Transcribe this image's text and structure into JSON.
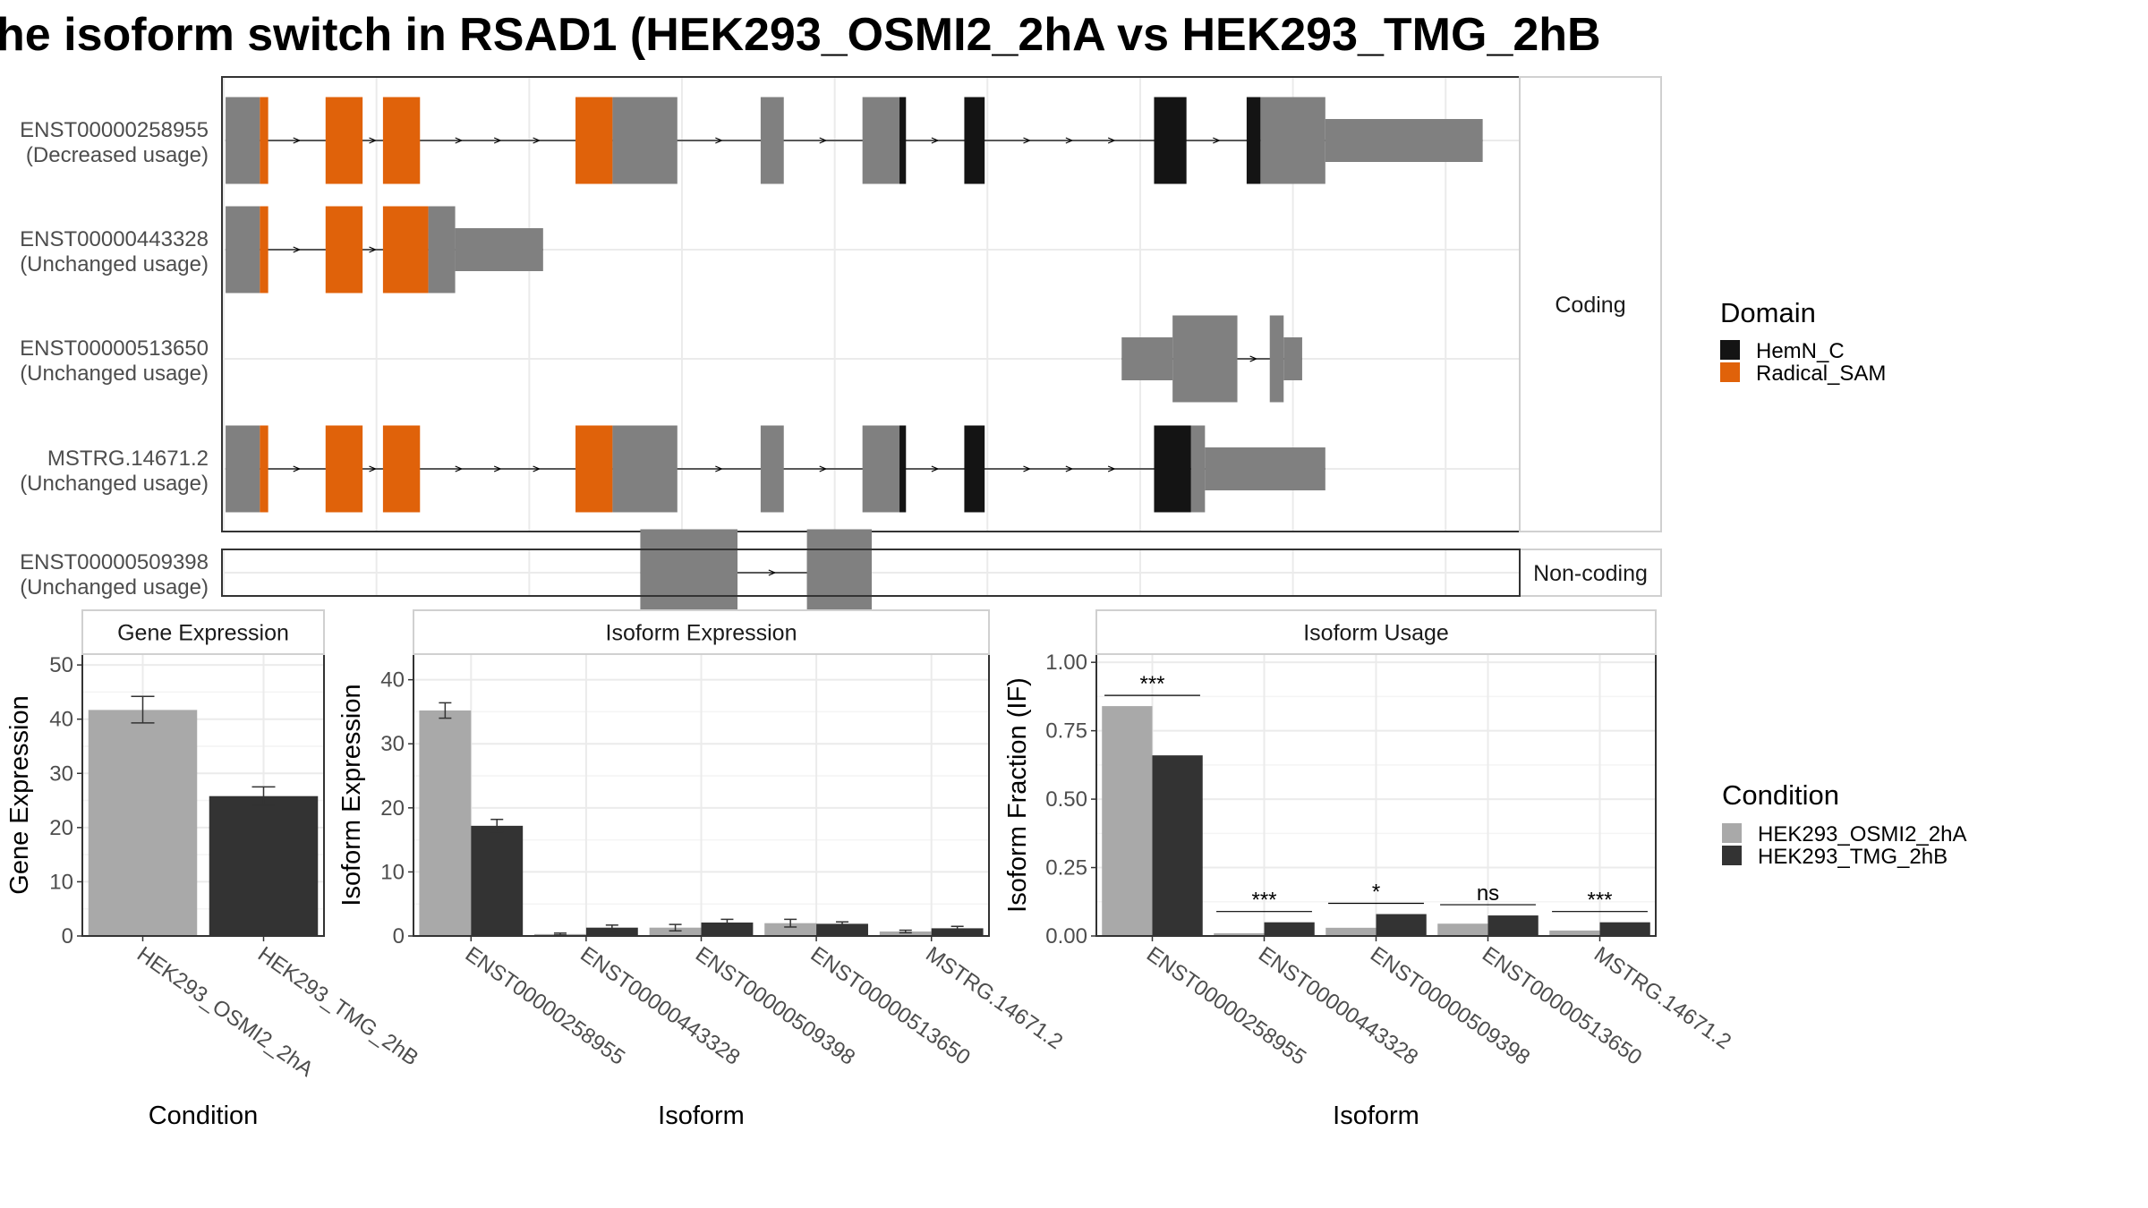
{
  "title": "he isoform switch in RSAD1 (HEK293_OSMI2_2hA vs HEK293_TMG_2hB",
  "colors": {
    "exon": "#808080",
    "HemN_C": "#141414",
    "Radical_SAM": "#e0620a",
    "cond_a": "#a9a9a9",
    "cond_b": "#333333",
    "grid": "#ebebeb",
    "panel_border": "#333333",
    "strip_bg": "#ffffff"
  },
  "structure": {
    "coding_label": "Coding",
    "noncoding_label": "Non-coding",
    "transcripts": [
      {
        "id": "ENST00000258955",
        "usage": "(Decreased usage)",
        "group": "coding",
        "segments": [
          [
            "u",
            2,
            39
          ],
          [
            "d",
            39,
            48
          ],
          [
            "d",
            110,
            150
          ],
          [
            "d",
            172,
            212
          ],
          [
            "d",
            380,
            420
          ],
          [
            "u",
            420,
            490
          ],
          [
            "u",
            580,
            605
          ],
          [
            "u",
            690,
            730
          ],
          [
            "k",
            730,
            737
          ],
          [
            "k",
            800,
            822
          ],
          [
            "k",
            1005,
            1040
          ],
          [
            "k",
            1105,
            1120
          ],
          [
            "u",
            1120,
            1190
          ],
          [
            "t",
            1190,
            1360
          ]
        ]
      },
      {
        "id": "ENST00000443328",
        "usage": "(Unchanged usage)",
        "group": "coding",
        "segments": [
          [
            "u",
            2,
            39
          ],
          [
            "d",
            39,
            48
          ],
          [
            "d",
            110,
            150
          ],
          [
            "d",
            172,
            221
          ],
          [
            "u",
            221,
            250
          ],
          [
            "t",
            250,
            345
          ]
        ]
      },
      {
        "id": "ENST00000513650",
        "usage": "(Unchanged usage)",
        "group": "coding",
        "segments": [
          [
            "t",
            970,
            1025
          ],
          [
            "u",
            1025,
            1095
          ],
          [
            "u",
            1130,
            1145
          ],
          [
            "t",
            1145,
            1165
          ]
        ]
      },
      {
        "id": "MSTRG.14671.2",
        "usage": "(Unchanged usage)",
        "group": "coding",
        "segments": [
          [
            "u",
            2,
            39
          ],
          [
            "d",
            39,
            48
          ],
          [
            "d",
            110,
            150
          ],
          [
            "d",
            172,
            212
          ],
          [
            "d",
            380,
            420
          ],
          [
            "u",
            420,
            490
          ],
          [
            "u",
            580,
            605
          ],
          [
            "u",
            690,
            730
          ],
          [
            "k",
            730,
            737
          ],
          [
            "k",
            800,
            822
          ],
          [
            "k",
            1005,
            1045
          ],
          [
            "u",
            1045,
            1060
          ],
          [
            "t",
            1060,
            1190
          ]
        ]
      },
      {
        "id": "ENST00000509398",
        "usage": "(Unchanged usage)",
        "group": "noncoding",
        "segments": [
          [
            "u",
            450,
            555
          ],
          [
            "u",
            630,
            700
          ]
        ]
      }
    ]
  },
  "legend_domain": {
    "title": "Domain",
    "items": [
      {
        "label": "HemN_C",
        "color": "#141414"
      },
      {
        "label": "Radical_SAM",
        "color": "#e0620a"
      }
    ]
  },
  "legend_condition": {
    "title": "Condition",
    "items": [
      {
        "label": "HEK293_OSMI2_2hA",
        "color": "#a9a9a9"
      },
      {
        "label": "HEK293_TMG_2hB",
        "color": "#333333"
      }
    ]
  },
  "chart_data": [
    {
      "type": "bar",
      "title": "Gene Expression",
      "xlabel": "Condition",
      "ylabel": "Gene Expression",
      "categories": [
        "HEK293_OSMI2_2hA",
        "HEK293_TMG_2hB"
      ],
      "values": [
        41.7,
        25.8
      ],
      "errors": [
        [
          39.3,
          44.2
        ],
        [
          24.1,
          27.5
        ]
      ],
      "ylim": [
        0,
        52
      ],
      "yticks": [
        "0",
        "10",
        "20",
        "30",
        "40",
        "50"
      ],
      "ytick_values": [
        0,
        10,
        20,
        30,
        40,
        50
      ]
    },
    {
      "type": "bar",
      "title": "Isoform Expression",
      "xlabel": "Isoform",
      "ylabel": "Isoform Expression",
      "categories": [
        "ENST00000258955",
        "ENST00000443328",
        "ENST00000509398",
        "ENST00000513650",
        "MSTRG.14671.2"
      ],
      "series": [
        {
          "name": "HEK293_OSMI2_2hA",
          "values": [
            35.2,
            0.3,
            1.3,
            2.0,
            0.7
          ],
          "errors": [
            [
              34.0,
              36.4
            ],
            [
              0.15,
              0.45
            ],
            [
              0.8,
              1.8
            ],
            [
              1.4,
              2.6
            ],
            [
              0.5,
              0.9
            ]
          ]
        },
        {
          "name": "HEK293_TMG_2hB",
          "values": [
            17.2,
            1.3,
            2.1,
            1.9,
            1.2
          ],
          "errors": [
            [
              16.2,
              18.2
            ],
            [
              0.9,
              1.7
            ],
            [
              1.6,
              2.6
            ],
            [
              1.6,
              2.2
            ],
            [
              0.9,
              1.5
            ]
          ]
        }
      ],
      "ylim": [
        0,
        44
      ],
      "yticks": [
        "0",
        "10",
        "20",
        "30",
        "40"
      ],
      "ytick_values": [
        0,
        10,
        20,
        30,
        40
      ]
    },
    {
      "type": "bar",
      "title": "Isoform Usage",
      "xlabel": "Isoform",
      "ylabel": "Isoform Fraction (IF)",
      "categories": [
        "ENST00000258955",
        "ENST00000443328",
        "ENST00000509398",
        "ENST00000513650",
        "MSTRG.14671.2"
      ],
      "series": [
        {
          "name": "HEK293_OSMI2_2hA",
          "values": [
            0.84,
            0.01,
            0.03,
            0.045,
            0.02
          ]
        },
        {
          "name": "HEK293_TMG_2hB",
          "values": [
            0.66,
            0.05,
            0.08,
            0.075,
            0.05
          ]
        }
      ],
      "significance": [
        "***",
        "***",
        "*",
        "ns",
        "***"
      ],
      "ylim": [
        0,
        1.03
      ],
      "yticks": [
        "0.00",
        "0.25",
        "0.50",
        "0.75",
        "1.00"
      ],
      "ytick_values": [
        0,
        0.25,
        0.5,
        0.75,
        1.0
      ]
    }
  ]
}
